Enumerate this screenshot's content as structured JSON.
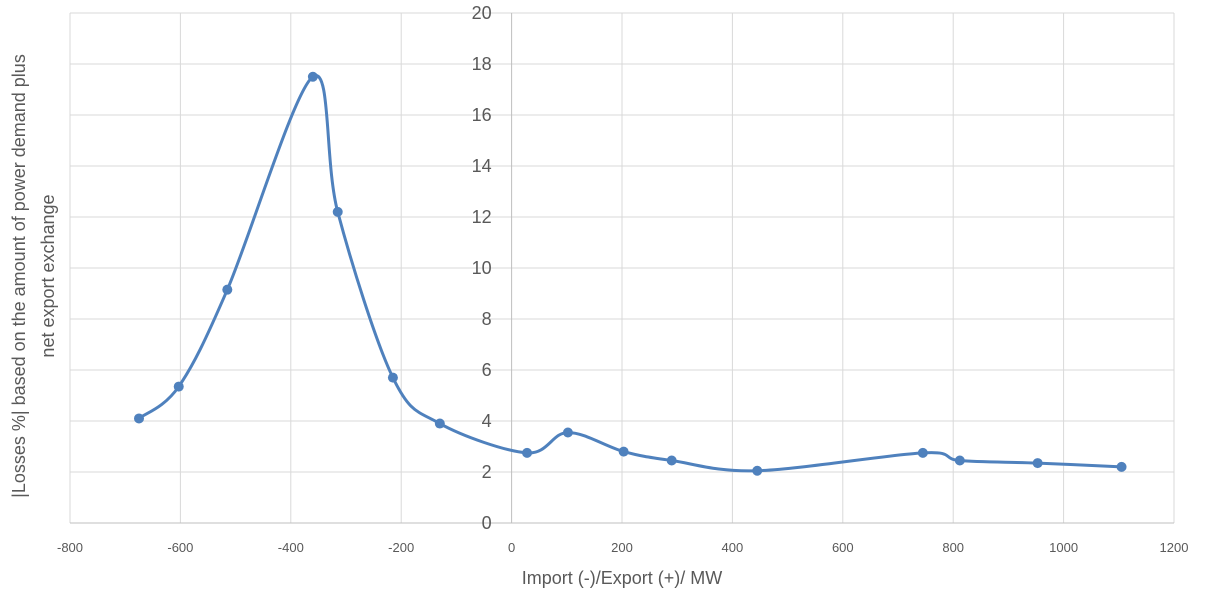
{
  "chart_data": {
    "type": "line",
    "xlabel": "Import (-)/Export (+)/ MW",
    "ylabel_lines": [
      "|Losses %| based on the amount of power demand plus",
      "net export exchange"
    ],
    "xlim": [
      -800,
      1200
    ],
    "ylim": [
      0,
      20
    ],
    "x_ticks": [
      "-800",
      "-600",
      "-400",
      "-200",
      "0",
      "200",
      "400",
      "600",
      "800",
      "1000",
      "1200"
    ],
    "y_ticks": [
      "0",
      "2",
      "4",
      "6",
      "8",
      "10",
      "12",
      "14",
      "16",
      "18",
      "20"
    ],
    "grid": true,
    "smooth": true,
    "series": [
      {
        "color": "#4f81bd",
        "x": [
          -675,
          -603,
          -515,
          -360,
          -315,
          -215,
          -130,
          28,
          102,
          203,
          290,
          445,
          745,
          812,
          953,
          1105
        ],
        "y": [
          4.1,
          5.35,
          9.15,
          17.5,
          12.2,
          5.7,
          3.9,
          2.75,
          3.55,
          2.8,
          2.45,
          2.05,
          2.75,
          2.45,
          2.35,
          2.2
        ]
      }
    ]
  }
}
